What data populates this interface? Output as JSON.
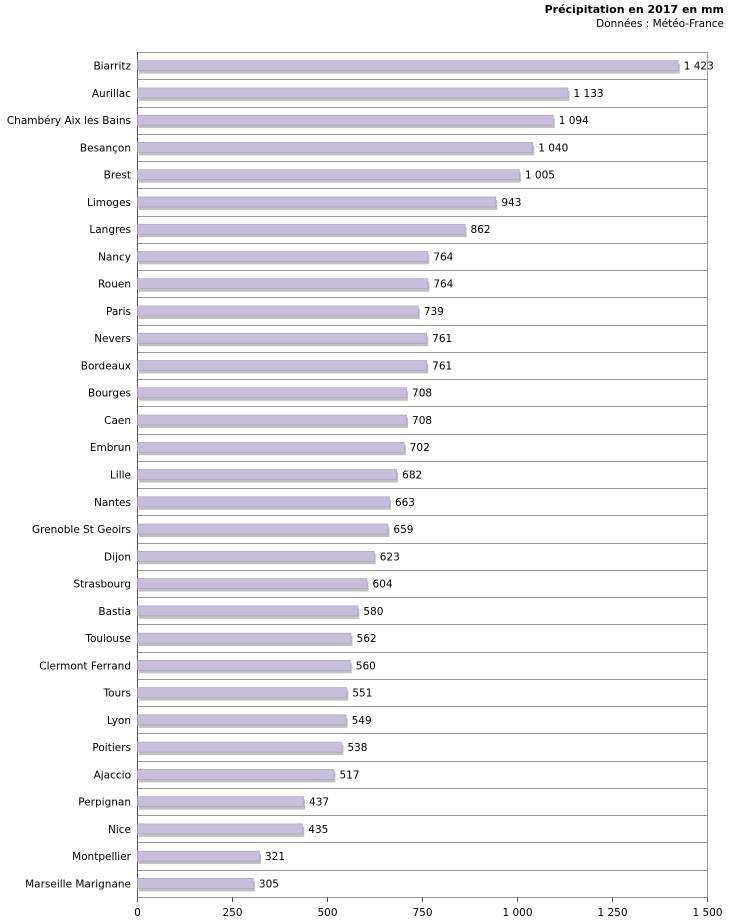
{
  "chart_data": {
    "type": "bar",
    "orientation": "horizontal",
    "title": "Précipitation en 2017 en mm",
    "subtitle": "Données : Météo-France",
    "categories": [
      "Biarritz",
      "Aurillac",
      "Chambéry Aix les Bains",
      "Besançon",
      "Brest",
      "Limoges",
      "Langres",
      "Nancy",
      "Rouen",
      "Paris",
      "Nevers",
      "Bordeaux",
      "Bourges",
      "Caen",
      "Embrun",
      "Lille",
      "Nantes",
      "Grenoble St Geoirs",
      "Dijon",
      "Strasbourg",
      "Bastia",
      "Toulouse",
      "Clermont Ferrand",
      "Tours",
      "Lyon",
      "Poitiers",
      "Ajaccio",
      "Perpignan",
      "Nice",
      "Montpellier",
      "Marseille Marignane"
    ],
    "values": [
      1423,
      1133,
      1094,
      1040,
      1005,
      943,
      862,
      764,
      764,
      739,
      761,
      761,
      708,
      708,
      702,
      682,
      663,
      659,
      623,
      604,
      580,
      562,
      560,
      551,
      549,
      538,
      517,
      437,
      435,
      321,
      305
    ],
    "value_labels": [
      "1 423",
      "1 133",
      "1 094",
      "1 040",
      "1 005",
      "943",
      "862",
      "764",
      "764",
      "739",
      "761",
      "761",
      "708",
      "708",
      "702",
      "682",
      "663",
      "659",
      "623",
      "604",
      "580",
      "562",
      "560",
      "551",
      "549",
      "538",
      "517",
      "437",
      "435",
      "321",
      "305"
    ],
    "xlim": [
      0,
      1500
    ],
    "ticks": [
      0,
      250,
      500,
      750,
      1000,
      1250,
      1500
    ],
    "tick_labels": [
      "0",
      "250",
      "500",
      "750",
      "1 000",
      "1 250",
      "1 500"
    ],
    "grid": "horizontal separators",
    "legend": "none",
    "colors": {
      "bar": "#c8bedc",
      "bar_edge": "#a99cc6",
      "shadow": "#c0c0c0",
      "grid": "#9a9a9a",
      "axis": "#555555"
    }
  }
}
